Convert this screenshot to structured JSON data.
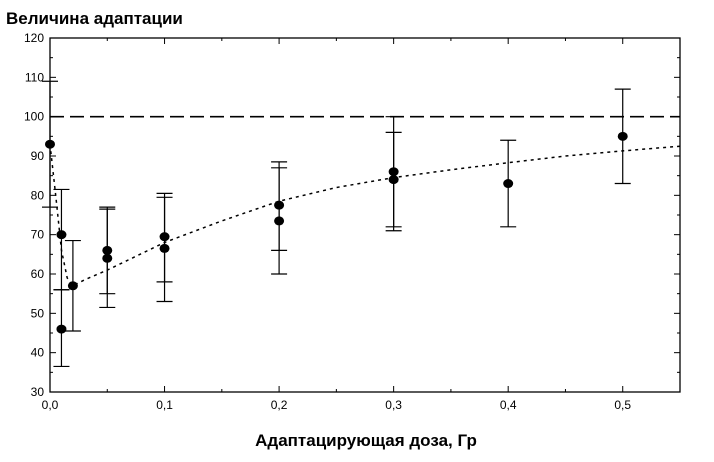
{
  "chart_data": {
    "type": "scatter",
    "title": "",
    "ylabel": "Величина адаптации",
    "xlabel": "Адаптацирующая доза, Гр",
    "xlim": [
      0,
      0.55
    ],
    "ylim": [
      30,
      120
    ],
    "x_ticks": [
      0,
      0.1,
      0.2,
      0.3,
      0.4,
      0.5
    ],
    "x_tick_labels": [
      "0,0",
      "0,1",
      "0,2",
      "0,3",
      "0,4",
      "0,5"
    ],
    "y_ticks": [
      30,
      40,
      50,
      60,
      70,
      80,
      90,
      100,
      110,
      120
    ],
    "y_tick_labels": [
      "30",
      "40",
      "50",
      "60",
      "70",
      "80",
      "90",
      "100",
      "110",
      "120"
    ],
    "grid": false,
    "reference_line": {
      "y": 100,
      "style": "dashed"
    },
    "series": [
      {
        "style": "points-with-error-bars",
        "points": [
          {
            "x": 0.0,
            "y": 93,
            "ylow": 77,
            "yhigh": 109
          },
          {
            "x": 0.01,
            "y": 70,
            "ylow": 56,
            "yhigh": 81.5
          },
          {
            "x": 0.01,
            "y": 46,
            "ylow": 36.5,
            "yhigh": 56
          },
          {
            "x": 0.02,
            "y": 57,
            "ylow": 45.5,
            "yhigh": 68.5
          },
          {
            "x": 0.05,
            "y": 66,
            "ylow": 55,
            "yhigh": 77
          },
          {
            "x": 0.05,
            "y": 64,
            "ylow": 51.5,
            "yhigh": 76.5
          },
          {
            "x": 0.1,
            "y": 69.5,
            "ylow": 58,
            "yhigh": 80.5
          },
          {
            "x": 0.1,
            "y": 66.5,
            "ylow": 53,
            "yhigh": 79.5
          },
          {
            "x": 0.2,
            "y": 77.5,
            "ylow": 66,
            "yhigh": 88.5
          },
          {
            "x": 0.2,
            "y": 73.5,
            "ylow": 60,
            "yhigh": 87
          },
          {
            "x": 0.3,
            "y": 86,
            "ylow": 72,
            "yhigh": 100
          },
          {
            "x": 0.3,
            "y": 84,
            "ylow": 71,
            "yhigh": 96
          },
          {
            "x": 0.4,
            "y": 83,
            "ylow": 72,
            "yhigh": 94
          },
          {
            "x": 0.5,
            "y": 95,
            "ylow": 83,
            "yhigh": 107
          }
        ]
      },
      {
        "style": "dotted-fit-curve",
        "x": [
          0.0,
          0.005,
          0.01,
          0.015,
          0.02,
          0.03,
          0.05,
          0.075,
          0.1,
          0.15,
          0.2,
          0.25,
          0.3,
          0.35,
          0.4,
          0.45,
          0.5,
          0.55
        ],
        "y": [
          93,
          80,
          66,
          59,
          57,
          58.5,
          61,
          64.5,
          68,
          73.5,
          78.5,
          82,
          84.5,
          86.5,
          88.3,
          90,
          91.3,
          92.5
        ]
      }
    ]
  }
}
